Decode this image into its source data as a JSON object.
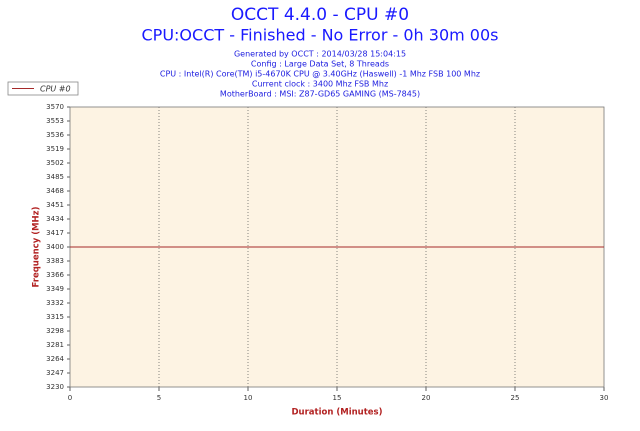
{
  "chart_data": {
    "type": "line",
    "title": "OCCT 4.4.0 - CPU #0",
    "subtitle": "CPU:OCCT - Finished - No Error - 0h 30m 00s",
    "info_lines": [
      "Generated by OCCT : 2014/03/28 15:04:15",
      "Config : Large Data Set, 8 Threads",
      "CPU : Intel(R) Core(TM) i5-4670K CPU @ 3.40GHz (Haswell) -1 Mhz FSB 100 Mhz",
      "Current clock : 3400 Mhz FSB  Mhz",
      "MotherBoard : MSI: Z87-GD65 GAMING (MS-7845)"
    ],
    "x_label": "Duration (Minutes)",
    "y_label": "Frequency (MHz)",
    "x": [
      0,
      30
    ],
    "series": [
      {
        "name": "CPU #0",
        "color": "#a52a2a",
        "values": [
          3400,
          3400
        ]
      }
    ],
    "xlim": [
      0,
      30
    ],
    "xticks": [
      0,
      5,
      10,
      15,
      20,
      25,
      30
    ],
    "ylim": [
      3230,
      3570
    ],
    "yticks": [
      3230,
      3247,
      3264,
      3281,
      3298,
      3315,
      3332,
      3349,
      3366,
      3383,
      3400,
      3417,
      3434,
      3451,
      3468,
      3485,
      3502,
      3519,
      3536,
      3553,
      3570
    ],
    "grid": "x"
  }
}
